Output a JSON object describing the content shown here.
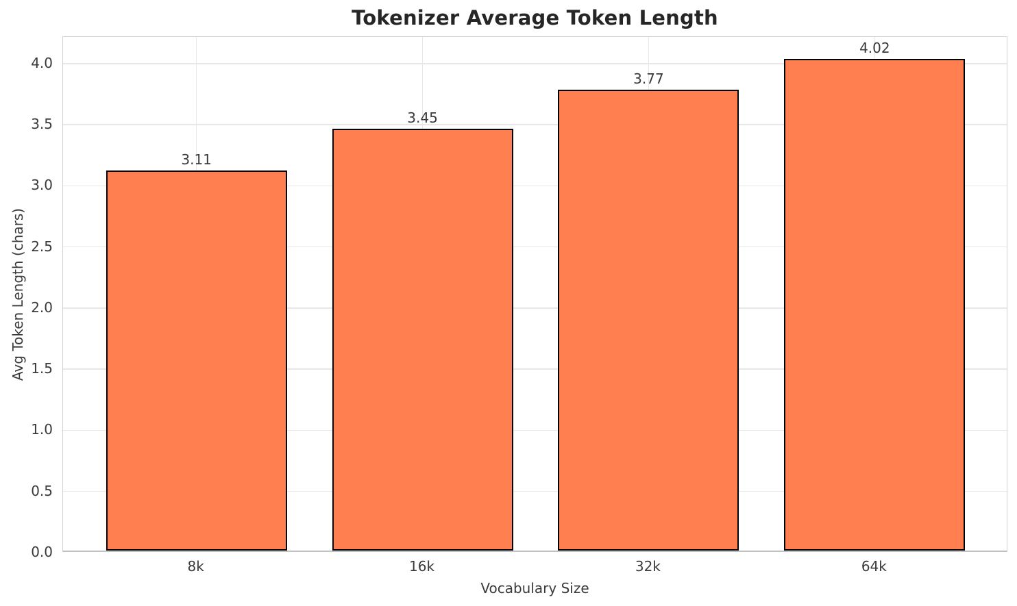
{
  "title": "Tokenizer Average Token Length",
  "chart_data": {
    "type": "bar",
    "title": "Tokenizer Average Token Length",
    "xlabel": "Vocabulary Size",
    "ylabel": "Avg Token Length (chars)",
    "categories": [
      "8k",
      "16k",
      "32k",
      "64k"
    ],
    "values": [
      3.11,
      3.45,
      3.77,
      4.02
    ],
    "value_labels": [
      "3.11",
      "3.45",
      "3.77",
      "4.02"
    ],
    "yticks": [
      0.0,
      0.5,
      1.0,
      1.5,
      2.0,
      2.5,
      3.0,
      3.5,
      4.0
    ],
    "ytick_labels": [
      "0.0",
      "0.5",
      "1.0",
      "1.5",
      "2.0",
      "2.5",
      "3.0",
      "3.5",
      "4.0"
    ],
    "ylim": [
      0,
      4.218
    ],
    "xlim": [
      -0.59,
      3.59
    ],
    "bar_width_data_units": 0.8,
    "grid": true,
    "legend": null,
    "bar_color": "#FF7F50",
    "bar_edge_color": "#000000",
    "grid_color": "#e7e7e7",
    "text_color": "#3a3a3a",
    "title_color": "#262626",
    "background_color": "#ffffff"
  }
}
